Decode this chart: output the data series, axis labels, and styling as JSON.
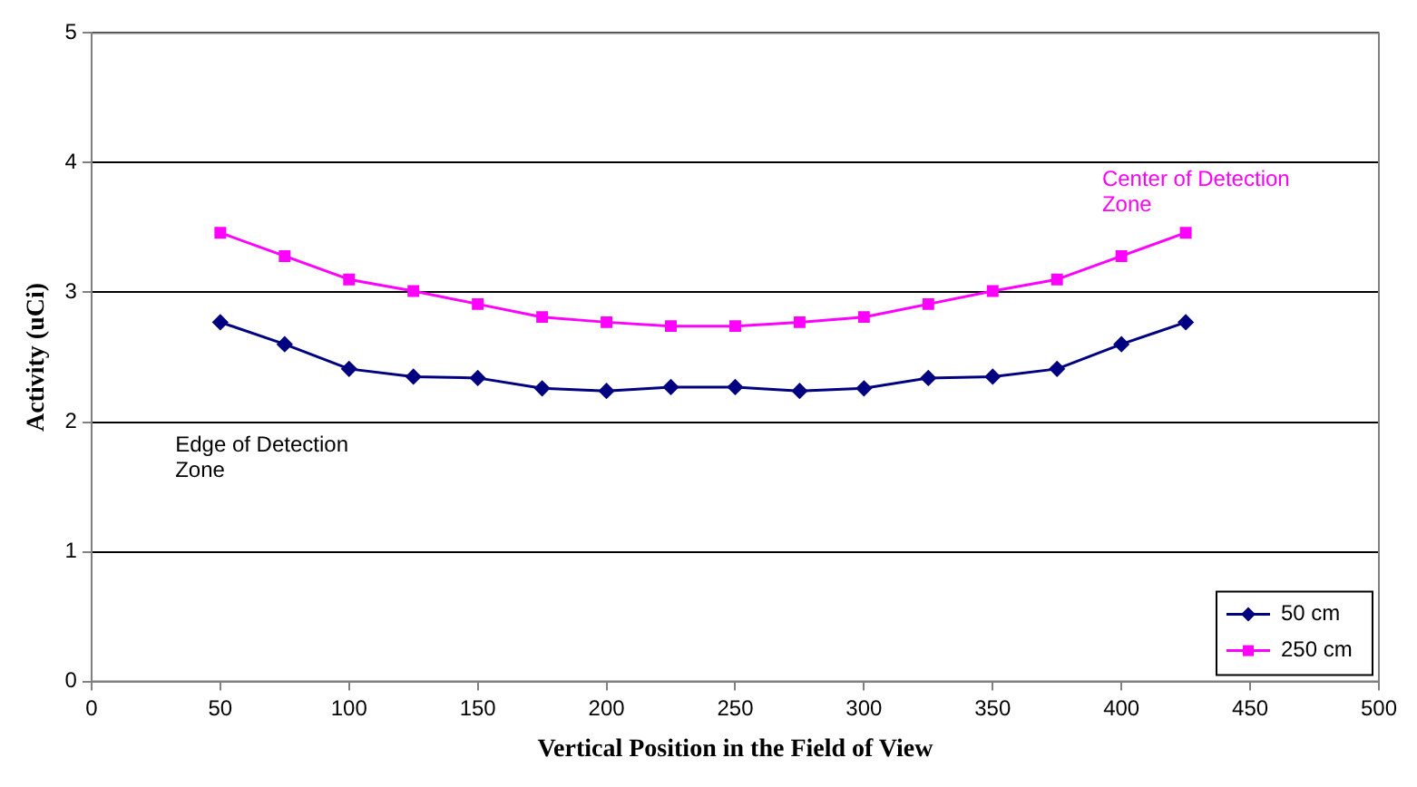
{
  "chart_data": {
    "type": "line",
    "xlabel": "Vertical Position in the Field of View",
    "ylabel": "Activity (uCi)",
    "x": [
      50,
      75,
      100,
      125,
      150,
      175,
      200,
      225,
      250,
      275,
      300,
      325,
      350,
      375,
      400,
      425
    ],
    "series": [
      {
        "name": "50 cm",
        "color": "#000080",
        "marker": "diamond",
        "values": [
          2.77,
          2.6,
          2.41,
          2.35,
          2.34,
          2.26,
          2.24,
          2.27,
          2.27,
          2.24,
          2.26,
          2.34,
          2.35,
          2.41,
          2.6,
          2.77
        ]
      },
      {
        "name": "250 cm",
        "color": "#ff00ff",
        "marker": "square",
        "values": [
          3.46,
          3.28,
          3.1,
          3.01,
          2.91,
          2.81,
          2.77,
          2.74,
          2.74,
          2.77,
          2.81,
          2.91,
          3.01,
          3.1,
          3.28,
          3.46
        ]
      }
    ],
    "xlim": [
      0,
      500
    ],
    "xticks": [
      0,
      50,
      100,
      150,
      200,
      250,
      300,
      350,
      400,
      450,
      500
    ],
    "ylim": [
      0,
      5
    ],
    "yticks": [
      0,
      1,
      2,
      3,
      4,
      5
    ],
    "grid": "y",
    "legend": "bottom right",
    "line_style": "solid",
    "annotations": [
      "Center of Detection Zone",
      "Edge of Detection Zone"
    ]
  }
}
